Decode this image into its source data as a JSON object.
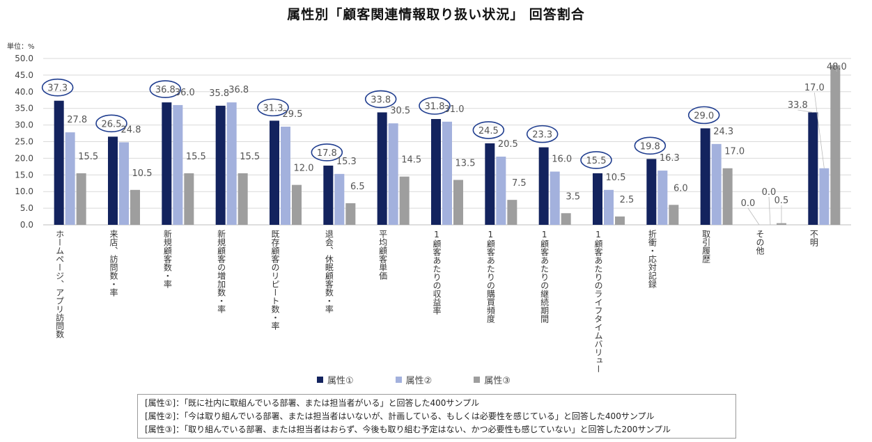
{
  "chart_data": {
    "type": "bar",
    "title": "属性別「顧客関連情報取り扱い状況」 回答割合",
    "unit_label": "単位：%",
    "ylim": [
      0,
      50
    ],
    "yticks": [
      "0.0",
      "5.0",
      "10.0",
      "15.0",
      "20.0",
      "25.0",
      "30.0",
      "35.0",
      "40.0",
      "45.0",
      "50.0"
    ],
    "categories": [
      "ホームページ、アプリ訪問数",
      "来店、訪問数・率",
      "新規顧客数・率",
      "新規顧客の増加数・率",
      "既存顧客のリピート数・率",
      "退会、休眠顧客数・率",
      "平均顧客単価",
      "1顧客あたりの収益率",
      "1顧客あたりの購買頻度",
      "1顧客あたりの継続期間",
      "1顧客あたりのライフタイムバリュー",
      "折衝・応対記録",
      "取引履歴",
      "その他",
      "不明"
    ],
    "series": [
      {
        "name": "属性①",
        "color": "#13235e",
        "values": [
          37.3,
          26.5,
          36.8,
          35.8,
          31.3,
          17.8,
          33.8,
          31.8,
          24.5,
          23.3,
          15.5,
          19.8,
          29.0,
          0.0,
          33.8
        ],
        "labels": [
          "37.3",
          "26.5",
          "36.8",
          "35.8",
          "31.3",
          "17.8",
          "33.8",
          "31.8",
          "24.5",
          "23.3",
          "15.5",
          "19.8",
          "29.0",
          "0.0",
          "33.8"
        ]
      },
      {
        "name": "属性②",
        "color": "#a3b1dd",
        "values": [
          27.8,
          24.8,
          36.0,
          36.8,
          29.5,
          15.3,
          30.5,
          31.0,
          20.5,
          16.0,
          10.5,
          16.3,
          24.3,
          0.0,
          17.0
        ],
        "labels": [
          "27.8",
          "24.8",
          "36.0",
          "36.8",
          "29.5",
          "15.3",
          "30.5",
          "31.0",
          "20.5",
          "16.0",
          "10.5",
          "16.3",
          "24.3",
          "0.0",
          "17.0"
        ]
      },
      {
        "name": "属性③",
        "color": "#9e9e9e",
        "values": [
          15.5,
          10.5,
          15.5,
          15.5,
          12.0,
          6.5,
          14.5,
          13.5,
          7.5,
          3.5,
          2.5,
          6.0,
          17.0,
          0.5,
          48.0
        ],
        "labels": [
          "15.5",
          "10.5",
          "15.5",
          "15.5",
          "12.0",
          "6.5",
          "14.5",
          "13.5",
          "7.5",
          "3.5",
          "2.5",
          "6.0",
          "17.0",
          "0.5",
          "48.0"
        ]
      }
    ],
    "highlighted": [
      0,
      1,
      2,
      4,
      5,
      6,
      7,
      8,
      9,
      10,
      11,
      12
    ],
    "legend": "bottom",
    "notes": [
      "[属性①]：「既に社内に取組んでいる部署、または担当者がいる」と回答した400サンプル",
      "[属性②]：「今は取り組んでいる部署、または担当者はいないが、計画している、もしくは必要性を感じている」と回答した400サンプル",
      "[属性③]：「取り組んでいる部署、または担当者はおらず、今後も取り組む予定はない、かつ必要性も感じていない」と回答した200サンプル"
    ]
  }
}
